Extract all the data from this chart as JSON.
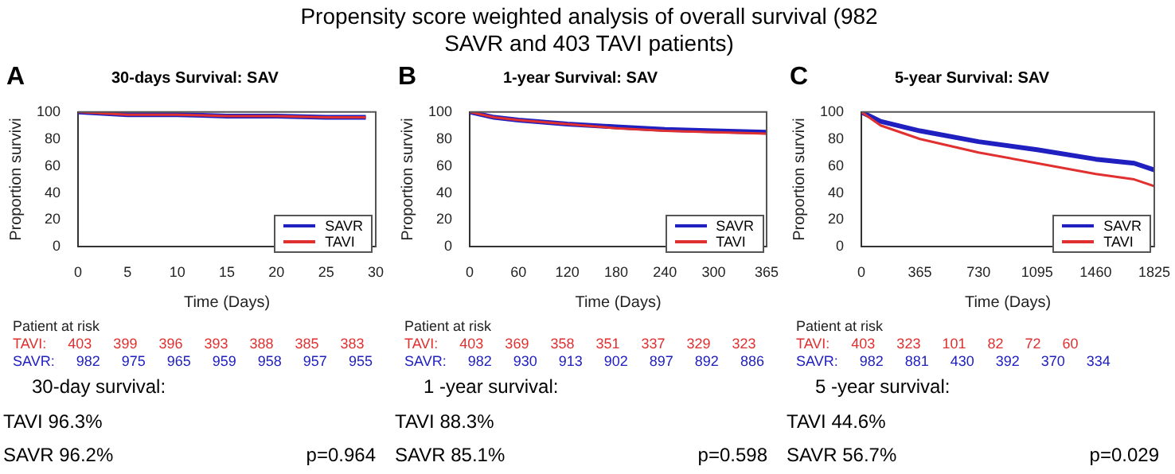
{
  "chart_data": [
    {
      "type": "line",
      "title": "30-days Survival: SAV",
      "xlabel": "Time (Days)",
      "ylabel": "Proportion survivi",
      "x": [
        0,
        5,
        10,
        15,
        20,
        25,
        29
      ],
      "xlim": [
        0,
        30
      ],
      "xticks": [
        0,
        5,
        10,
        15,
        20,
        25,
        30
      ],
      "ylim": [
        0,
        100
      ],
      "yticks": [
        0,
        20,
        40,
        60,
        80,
        100
      ],
      "grid": false,
      "legend": "bottom right",
      "marker": "none",
      "line_style": "solid",
      "series": [
        {
          "name": "SAVR",
          "color": "#2020c0",
          "values": [
            100,
            98,
            98,
            97,
            97,
            96,
            96
          ]
        },
        {
          "name": "TAVI",
          "color": "#e03030",
          "values": [
            100,
            98,
            98,
            97,
            97,
            96,
            96
          ]
        }
      ],
      "annotations": [
        "Propensity score weighted analysis of overall survival (982 SAVR and 403 TAVI patients)",
        "A",
        "Patient at risk",
        "TAVI: 403 399 396 393 388 385 383",
        "SAVR: 982 975 965 959 958 957 955",
        "30-day survival:",
        "TAVI 96.3%",
        "SAVR 96.2%",
        "p=0.964"
      ]
    },
    {
      "type": "line",
      "title": "1-year Survival: SAV",
      "xlabel": "Time (Days)",
      "ylabel": "Proportion survivi",
      "x": [
        0,
        30,
        60,
        120,
        180,
        240,
        300,
        365
      ],
      "xlim": [
        0,
        365
      ],
      "xticks": [
        0,
        60,
        120,
        180,
        240,
        300,
        365
      ],
      "ylim": [
        0,
        100
      ],
      "yticks": [
        0,
        20,
        40,
        60,
        80,
        100
      ],
      "grid": false,
      "legend": "bottom right",
      "marker": "none",
      "line_style": "solid",
      "series": [
        {
          "name": "SAVR",
          "color": "#2020c0",
          "values": [
            100,
            96,
            94,
            91,
            89,
            87,
            86,
            85
          ]
        },
        {
          "name": "TAVI",
          "color": "#e03030",
          "values": [
            100,
            96,
            94,
            91,
            88,
            86,
            85,
            84
          ]
        }
      ],
      "annotations": [
        "B",
        "Patient at risk",
        "TAVI: 403 369 358 351 337 329 323",
        "SAVR: 982 930 913 902 897 892 886",
        "1 -year survival:",
        "TAVI 88.3%",
        "SAVR 85.1%",
        "p=0.598"
      ]
    },
    {
      "type": "line",
      "title": "5-year Survival: SAV",
      "xlabel": "Time (Days)",
      "ylabel": "Proportion survivi",
      "x": [
        0,
        120,
        365,
        730,
        1095,
        1460,
        1700,
        1825
      ],
      "xlim": [
        0,
        1825
      ],
      "xticks": [
        0,
        365,
        730,
        1095,
        1460,
        1825
      ],
      "ylim": [
        0,
        100
      ],
      "yticks": [
        0,
        20,
        40,
        60,
        80,
        100
      ],
      "grid": false,
      "legend": "bottom right",
      "marker": "none",
      "line_style": "solid",
      "series": [
        {
          "name": "SAVR",
          "color": "#2020c0",
          "values": [
            100,
            93,
            86,
            78,
            72,
            65,
            62,
            57
          ]
        },
        {
          "name": "TAVI",
          "color": "#e03030",
          "values": [
            100,
            90,
            80,
            70,
            62,
            54,
            50,
            45
          ]
        }
      ],
      "annotations": [
        "C",
        "Patient at risk",
        "TAVI: 403 323 101 82 72 60",
        "SAVR: 982 881 430 392 370 334",
        "5 -year survival:",
        "TAVI 44.6%",
        "SAVR 56.7%",
        "p=0.029"
      ]
    }
  ]
}
